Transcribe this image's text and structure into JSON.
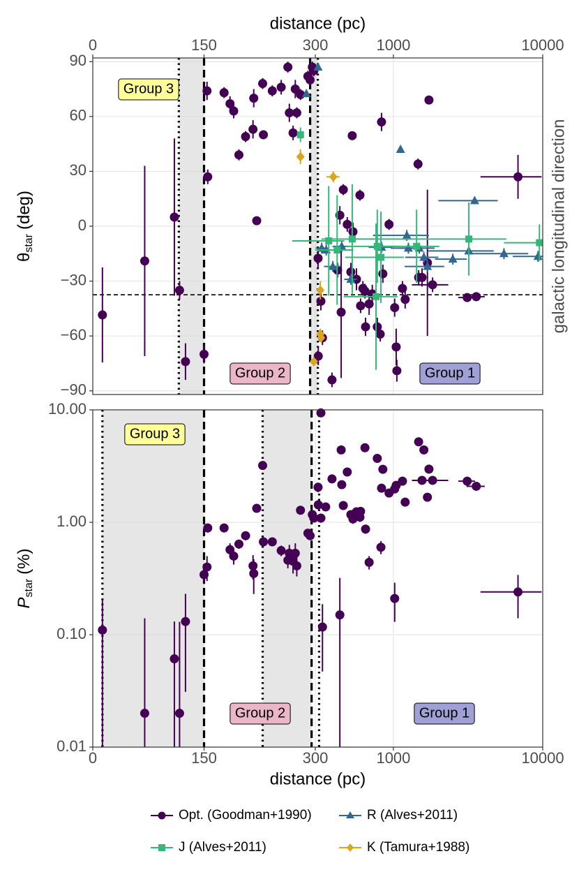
{
  "chart_data": [
    {
      "type": "scatter",
      "xlabel": "distance (pc)",
      "x_axis_side": "top",
      "ylabel": "θ",
      "ylabel_sub": "star",
      "ylabel_unit": "(deg)",
      "strip_label": "galactic longitudinal direction",
      "xlim": [
        0,
        10000
      ],
      "xlinear_until": 300,
      "xscale": "log",
      "xticks": [
        0,
        150,
        300,
        1000,
        10000
      ],
      "ylim": [
        -92,
        92
      ],
      "yticks": [
        90,
        60,
        30,
        0,
        {
          "value": -30,
          "label": "−30"
        },
        {
          "value": -60,
          "label": "−60"
        },
        {
          "value": -90,
          "label": "−90"
        }
      ],
      "grid": true,
      "hline": -37.5,
      "regions": [
        [
          116,
          150
        ],
        [
          293,
          312
        ]
      ],
      "vlines": [
        {
          "x": 116,
          "style": "dotted"
        },
        {
          "x": 150,
          "style": "dashed"
        },
        {
          "x": 293,
          "style": "dashed"
        },
        {
          "x": 312,
          "style": "dotted"
        }
      ],
      "annotations": [
        {
          "text": "Group 3",
          "color": "#ffff99"
        },
        {
          "text": "Group 2",
          "color": "#eab6c8"
        },
        {
          "text": "Group 1",
          "color": "#a0a0d6"
        }
      ],
      "legend_position": "bottom",
      "series": [
        {
          "name": "Opt. (Goodman+1990)",
          "color": "#440154",
          "marker": "circle",
          "x": [
            13,
            70,
            110,
            117,
            125,
            150,
            154,
            155,
            177,
            185,
            190,
            197,
            206,
            216,
            217,
            221,
            229,
            230,
            242,
            254,
            263,
            265,
            270,
            273,
            275,
            280,
            290,
            293,
            296,
            298,
            313,
            314,
            327,
            335,
            388,
            423,
            438,
            447,
            462,
            491,
            519,
            530,
            536,
            566,
            597,
            603,
            625,
            645,
            651,
            688,
            722,
            780,
            816,
            833,
            850,
            935,
            1020,
            1044,
            1055,
            1150,
            1199,
            1462,
            1476,
            1555,
            1690,
            1730,
            1830,
            3120,
            3590,
            6830
          ],
          "values": [
            -48.5,
            -19,
            5,
            -35,
            -74,
            -70,
            74,
            27,
            73,
            67,
            63,
            39,
            49,
            53,
            70,
            3,
            78,
            50,
            74,
            76,
            87,
            62,
            51,
            75,
            62,
            72,
            82,
            80,
            87,
            85,
            -17.5,
            -71,
            -41,
            -61,
            -84,
            -24,
            6,
            -47,
            20,
            1,
            -25,
            49.5,
            -3,
            -29,
            17,
            -43.5,
            -34,
            -35.5,
            -55,
            -42.5,
            -37,
            -55,
            -59,
            57,
            -26,
            1,
            -44.5,
            -66,
            -79,
            -34,
            -40,
            34,
            -28,
            -28,
            -20,
            69,
            -32,
            -39,
            -38.5,
            27
          ],
          "yerr": [
            26,
            52,
            43,
            5,
            10,
            5,
            5,
            4,
            3,
            4,
            4,
            3,
            3,
            5,
            5,
            2,
            3,
            2,
            3,
            4,
            3,
            5,
            4,
            5,
            3,
            3,
            3,
            3,
            3,
            3,
            6,
            5,
            5,
            4,
            4,
            4,
            5,
            36,
            3,
            4,
            5,
            2,
            5,
            6,
            3,
            4,
            4,
            4,
            5,
            6,
            5,
            5,
            4,
            5,
            5,
            3,
            5,
            10,
            6,
            4,
            5,
            3,
            4,
            5,
            40,
            2,
            4,
            2,
            2,
            12
          ],
          "xerr": [
            0,
            0,
            0,
            0,
            0,
            0,
            0,
            0,
            0,
            0,
            0,
            0,
            0,
            0,
            0,
            0,
            0,
            0,
            0,
            0,
            0,
            0,
            0,
            0,
            0,
            0,
            0,
            0,
            0,
            0,
            0,
            0,
            0,
            0,
            0,
            0,
            0,
            0,
            0,
            0,
            0,
            30,
            0,
            0,
            0,
            0,
            0,
            0,
            0,
            0,
            0,
            0,
            0,
            0,
            0,
            0,
            0,
            0,
            0,
            0,
            0,
            0,
            0,
            0,
            0,
            100,
            500,
            400,
            500,
            3000
          ]
        },
        {
          "name": "R (Alves+2011)",
          "color": "#31688e",
          "marker": "triangle",
          "x": [
            288,
            313,
            331,
            355,
            393,
            451,
            519,
            833,
            1116,
            1230,
            1260,
            1490,
            1600,
            1690,
            2500,
            3200,
            3500,
            5500,
            9300
          ],
          "values": [
            72.5,
            87,
            -12,
            -13,
            -22,
            -11,
            -29,
            -11.5,
            42,
            -5,
            -12,
            -12,
            -17,
            -22,
            -18,
            -13.5,
            14,
            -15,
            -16.5
          ],
          "yerr": [
            2,
            2,
            3,
            3,
            3,
            3,
            3,
            3,
            2,
            3,
            3,
            3,
            3,
            3,
            3,
            3,
            2,
            3,
            3
          ],
          "xerr": [
            0,
            10,
            30,
            40,
            50,
            60,
            50,
            150,
            0,
            500,
            300,
            400,
            400,
            500,
            600,
            1500,
            1500,
            2500,
            3000
          ]
        },
        {
          "name": "J (Alves+2011)",
          "color": "#35b779",
          "marker": "square",
          "x": [
            280,
            369,
            420,
            530,
            765,
            780,
            825,
            1430,
            3200,
            9500
          ],
          "values": [
            50,
            -8,
            -13,
            -7,
            -38.5,
            -11,
            -17,
            -11,
            -7,
            -9
          ],
          "yerr": [
            4,
            30,
            30,
            30,
            40,
            20,
            25,
            20,
            20,
            10
          ],
          "xerr": [
            0,
            100,
            120,
            200,
            300,
            300,
            350,
            600,
            2500,
            4000
          ]
        },
        {
          "name": "K (Tamura+1988)",
          "color": "#daa520",
          "marker": "diamond",
          "x": [
            280,
            396,
            324,
            324,
            298,
            328
          ],
          "values": [
            38,
            27,
            -35,
            -59,
            -74,
            -61
          ],
          "yerr": [
            4,
            3,
            5,
            3,
            2,
            2
          ],
          "xerr": [
            0,
            40,
            0,
            0,
            0,
            0
          ]
        }
      ]
    },
    {
      "type": "scatter",
      "xlabel": "distance (pc)",
      "x_axis_side": "bottom",
      "ylabel": "P",
      "ylabel_sub": "star",
      "ylabel_unit": "(%)",
      "xlim": [
        0,
        10000
      ],
      "xlinear_until": 300,
      "xscale": "log",
      "xticks": [
        0,
        150,
        300,
        1000,
        10000
      ],
      "ylim": [
        0.01,
        10
      ],
      "yscale": "log",
      "yticks": [
        {
          "value": 10,
          "label": "10.00"
        },
        {
          "value": 1,
          "label": "1.00"
        },
        {
          "value": 0.1,
          "label": "0.10"
        },
        0.01
      ],
      "grid": true,
      "regions": [
        [
          13,
          150
        ],
        [
          229,
          295
        ]
      ],
      "vlines": [
        {
          "x": 13,
          "style": "dotted"
        },
        {
          "x": 150,
          "style": "dashed"
        },
        {
          "x": 229,
          "style": "dotted"
        },
        {
          "x": 295,
          "style": "dashed"
        },
        {
          "x": 318,
          "style": "dotted"
        }
      ],
      "annotations": [
        {
          "text": "Group 3",
          "color": "#ffff99"
        },
        {
          "text": "Group 2",
          "color": "#eab6c8"
        },
        {
          "text": "Group 1",
          "color": "#a0a0d6"
        }
      ],
      "series": [
        {
          "color": "#440154",
          "marker": "circle",
          "x": [
            13,
            70,
            110,
            117,
            125,
            150,
            154,
            155,
            177,
            185,
            190,
            197,
            206,
            216,
            217,
            221,
            229,
            230,
            242,
            254,
            263,
            265,
            270,
            273,
            275,
            280,
            290,
            293,
            296,
            298,
            313,
            314,
            327,
            327,
            335,
            352,
            388,
            438,
            447,
            451,
            462,
            491,
            519,
            536,
            566,
            597,
            603,
            645,
            651,
            688,
            780,
            825,
            833,
            850,
            935,
            1020,
            1020,
            1044,
            1150,
            1199,
            1476,
            1555,
            1600,
            1690,
            1730,
            1830,
            3120,
            3590,
            6830
          ],
          "values": [
            0.11,
            0.02,
            0.061,
            0.02,
            0.131,
            0.342,
            0.4,
            0.89,
            0.89,
            0.57,
            0.5,
            0.64,
            0.76,
            0.41,
            0.35,
            1.33,
            3.2,
            0.67,
            0.67,
            0.56,
            0.46,
            0.53,
            0.45,
            0.53,
            0.41,
            1.28,
            0.8,
            0.76,
            1.17,
            1.09,
            2.05,
            1.43,
            9.4,
            1.09,
            0.117,
            1.37,
            2.43,
            0.15,
            4.4,
            2.16,
            1.41,
            2.8,
            1.17,
            1.07,
            1.24,
            1.11,
            1.25,
            4.6,
            0.87,
            0.44,
            3.7,
            0.6,
            2.01,
            2.96,
            1.82,
            0.21,
            1.98,
            2.13,
            2.32,
            1.51,
            5.2,
            2.36,
            4.4,
            1.67,
            2.97,
            2.36,
            2.32,
            2.09,
            0.24
          ],
          "yerr": [
            0.1,
            0.12,
            0.07,
            0.11,
            0.1,
            0.06,
            0.1,
            0.08,
            0.05,
            0.08,
            0.08,
            0.06,
            0.07,
            0.1,
            0.12,
            0.06,
            0.2,
            0.05,
            0.05,
            0.06,
            0.07,
            0.1,
            0.1,
            0.12,
            0.08,
            0.06,
            0.05,
            0.05,
            0.06,
            0.06,
            0.2,
            0.1,
            0.5,
            0.1,
            0.07,
            0.1,
            0.2,
            0.17,
            0.3,
            0.15,
            0.1,
            0.2,
            0.1,
            0.1,
            0.1,
            0.1,
            0.1,
            0.3,
            0.08,
            0.06,
            0.3,
            0.08,
            0.15,
            0.2,
            0.15,
            0.08,
            0.15,
            0.15,
            0.15,
            0.12,
            0.3,
            0.15,
            0.3,
            0.12,
            0.2,
            0.15,
            0.15,
            0.15,
            0.1
          ],
          "xerr": [
            0,
            0,
            0,
            0,
            0,
            0,
            0,
            0,
            0,
            0,
            0,
            0,
            0,
            0,
            0,
            0,
            0,
            0,
            0,
            0,
            0,
            0,
            0,
            0,
            0,
            0,
            0,
            0,
            0,
            0,
            0,
            0,
            0,
            0,
            0,
            0,
            0,
            0,
            0,
            0,
            0,
            0,
            0,
            0,
            0,
            0,
            0,
            0,
            0,
            0,
            0,
            0,
            0,
            0,
            0,
            0,
            0,
            0,
            0,
            0,
            0,
            0,
            0,
            0,
            100,
            500,
            400,
            500,
            3000
          ]
        }
      ]
    }
  ]
}
